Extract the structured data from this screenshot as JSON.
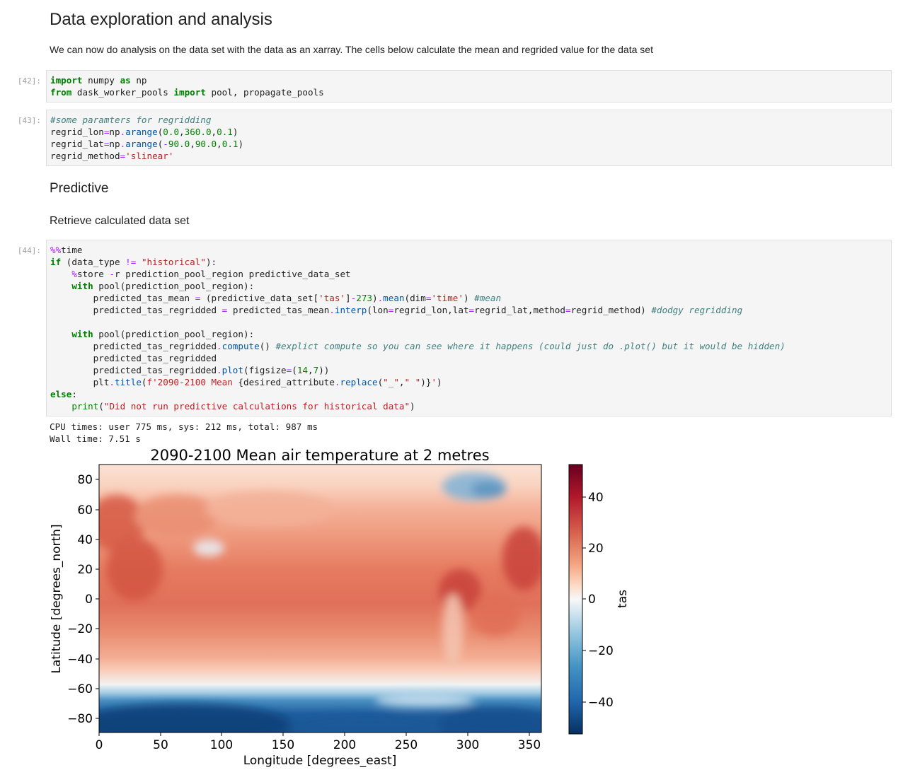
{
  "headings": {
    "data_exploration": "Data exploration and analysis",
    "intro_text": "We can now do analysis on the data set with the data as an xarray. The cells below calculate the mean and regrided value for the data set",
    "predictive": "Predictive",
    "retrieve": "Retrieve calculated data set"
  },
  "cells": {
    "c42": {
      "prompt": "[42]:"
    },
    "c43": {
      "prompt": "[43]:"
    },
    "c44": {
      "prompt": "[44]:"
    }
  },
  "output": {
    "cpu_times": "CPU times: user 775 ms, sys: 212 ms, total: 987 ms",
    "wall_time": "Wall time: 7.51 s"
  },
  "chart_data": {
    "type": "heatmap",
    "title": "2090-2100 Mean air temperature at 2 metres",
    "xlabel": "Longitude [degrees_east]",
    "ylabel": "Latitude [degrees_north]",
    "xlim": [
      0,
      360
    ],
    "ylim": [
      -90,
      90
    ],
    "xticks": [
      "0",
      "50",
      "100",
      "150",
      "200",
      "250",
      "300",
      "350"
    ],
    "yticks": [
      "80",
      "60",
      "40",
      "20",
      "0",
      "−20",
      "−40",
      "−60",
      "−80"
    ],
    "colorbar": {
      "label": "tas",
      "range": [
        -52,
        52
      ],
      "ticks": [
        "40",
        "20",
        "0",
        "−20",
        "−40"
      ],
      "colormap": "RdBu_r"
    },
    "colors": {
      "dark_red": "#67001f",
      "red": "#d6604d",
      "light": "#f7f7f7",
      "blue": "#4393c3",
      "dark_blue": "#053061"
    }
  }
}
